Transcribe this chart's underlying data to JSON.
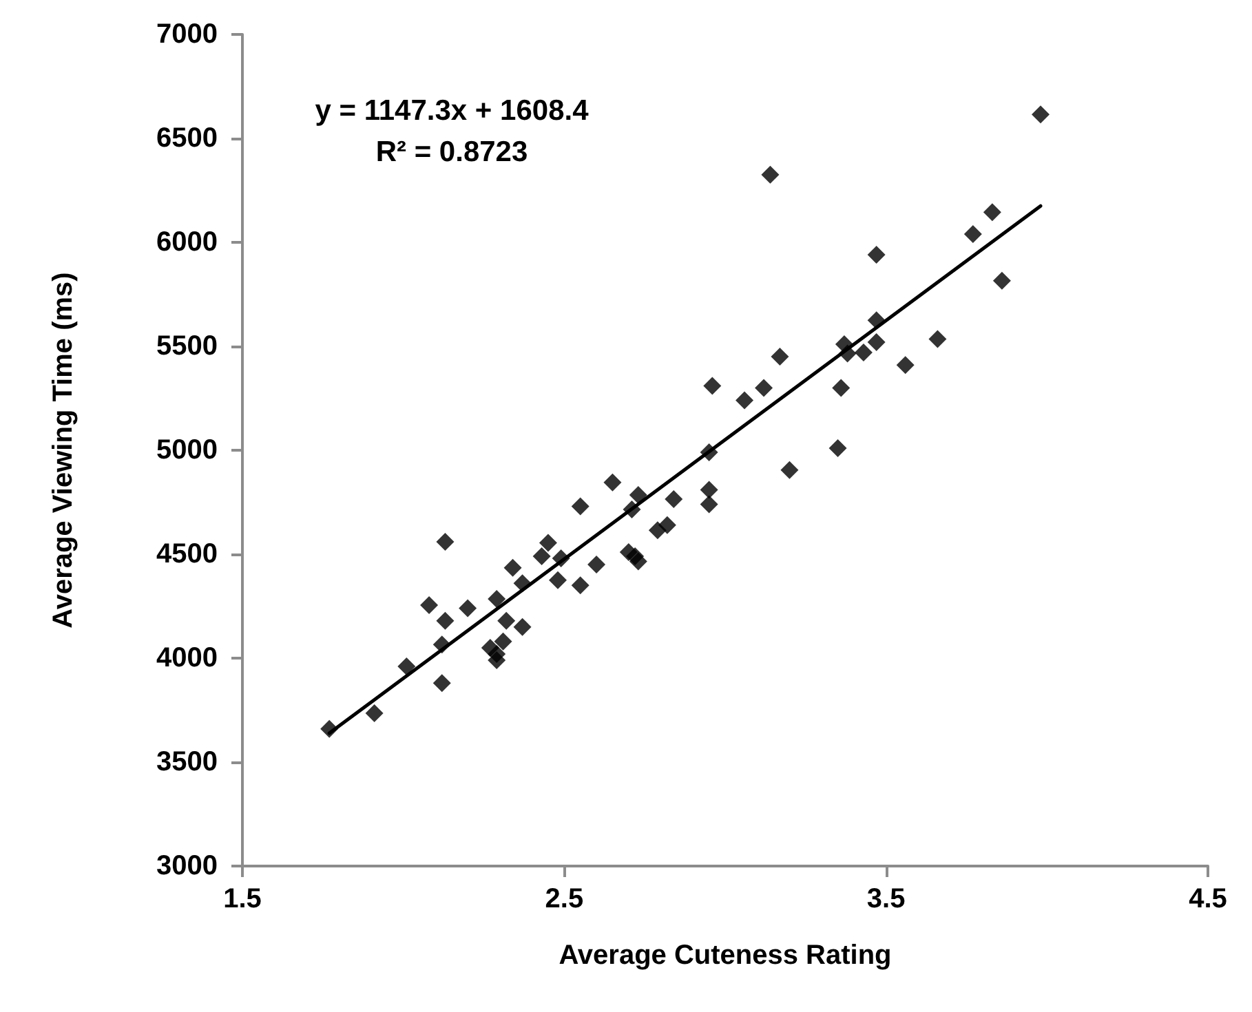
{
  "chart_data": {
    "type": "scatter",
    "xlabel": "Average Cuteness Rating",
    "ylabel": "Average Viewing Time (ms)",
    "annotations": [
      "y = 1147.3x + 1608.4",
      "R² = 0.8723"
    ],
    "xlim": [
      1.5,
      4.5
    ],
    "xticks": [
      1.5,
      2.5,
      3.5,
      4.5
    ],
    "ylim": [
      3000,
      7000
    ],
    "yticks": [
      3000,
      3500,
      4000,
      4500,
      5000,
      5500,
      6000,
      6500,
      7000
    ],
    "grid": false,
    "marker": "diamond",
    "series": [
      {
        "color": "#000000",
        "x": [
          1.77,
          1.91,
          2.01,
          2.12,
          2.12,
          2.08,
          2.13,
          2.13,
          2.2,
          2.27,
          2.31,
          2.29,
          2.29,
          2.29,
          2.32,
          2.37,
          2.34,
          2.37,
          2.43,
          2.45,
          2.49,
          2.48,
          2.55,
          2.55,
          2.6,
          2.65,
          2.7,
          2.72,
          2.73,
          2.71,
          2.73,
          2.79,
          2.82,
          2.84,
          2.95,
          2.95,
          2.95,
          3.98,
          3.14,
          3.83,
          3.77,
          3.47,
          3.86,
          3.47,
          3.47,
          3.37,
          3.38,
          3.43,
          3.66,
          3.56,
          3.17,
          3.12,
          2.96,
          3.06,
          3.36,
          3.35,
          3.2
        ],
        "values": [
          3660,
          3735,
          3960,
          3880,
          4065,
          4255,
          4180,
          4560,
          4240,
          4050,
          4080,
          3990,
          4020,
          4285,
          4180,
          4150,
          4435,
          4360,
          4490,
          4555,
          4480,
          4375,
          4350,
          4730,
          4450,
          4845,
          4510,
          4490,
          4465,
          4715,
          4785,
          4615,
          4640,
          4765,
          4990,
          4810,
          4740,
          6615,
          6325,
          6145,
          6040,
          5940,
          5815,
          5625,
          5520,
          5510,
          5465,
          5470,
          5535,
          5410,
          5450,
          5300,
          5310,
          5240,
          5300,
          5010,
          4905
        ]
      },
      {
        "type": "line",
        "color": "#000000",
        "marker": "none",
        "x": [
          1.77,
          3.98
        ],
        "values": [
          3639,
          6175
        ]
      }
    ]
  }
}
